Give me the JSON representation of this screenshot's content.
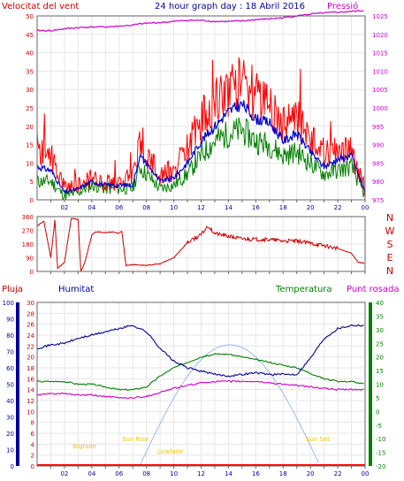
{
  "header": {
    "wind_title": "Velocitat del vent",
    "graph_title": "24 hour graph day : 18 Abril 2016",
    "pressure_title": "Pressió"
  },
  "bottom_header": {
    "rain_label": "Pluja",
    "humidity_label": "Humitat",
    "temperature_label": "Temperatura",
    "dewpoint_label": "Punt rosada"
  },
  "sun_labels": {
    "dawn": "Bigfade",
    "sunrise": "Sun Rise",
    "sunset": "Sun Set",
    "low": "Lowfade"
  },
  "wind_dir_labels": [
    "N",
    "W",
    "S",
    "E",
    "N"
  ],
  "colors": {
    "wind_gust": "#ff0000",
    "wind_avg": "#0000cc",
    "wind_speed": "#008000",
    "pressure": "#cc00cc",
    "direction": "#cc0000",
    "humidity": "#000099",
    "temperature": "#008000",
    "dewpoint": "#cc00cc",
    "rain": "#ff0000",
    "solar": "#99bbee",
    "grid": "#e6e6e6",
    "frame": "#666666"
  },
  "chart_data": [
    {
      "type": "line",
      "name": "wind",
      "x_ticks": [
        "02",
        "04",
        "06",
        "08",
        "10",
        "12",
        "14",
        "16",
        "18",
        "20",
        "22",
        "00"
      ],
      "y_ticks_left": [
        0,
        5,
        10,
        15,
        20,
        25,
        30,
        35,
        40,
        45,
        50
      ],
      "y_ticks_right": [
        975,
        980,
        985,
        990,
        995,
        1000,
        1005,
        1010,
        1015,
        1020,
        1025
      ],
      "ylim": [
        0,
        50
      ],
      "ylim_right": [
        975,
        1025
      ],
      "x_hours": [
        0,
        1,
        2,
        3,
        4,
        5,
        6,
        7,
        7.5,
        8,
        9,
        10,
        11,
        12,
        13,
        14,
        15,
        16,
        17,
        18,
        19,
        20,
        21,
        22,
        23,
        24
      ],
      "gust": [
        14,
        12,
        3,
        4,
        6,
        5,
        5,
        6,
        15,
        12,
        7,
        8,
        14,
        22,
        26,
        30,
        33,
        28,
        26,
        20,
        22,
        17,
        12,
        13,
        13,
        3
      ],
      "average": [
        9,
        8,
        2,
        3,
        5,
        4,
        4,
        4,
        12,
        10,
        5,
        6,
        10,
        16,
        20,
        24,
        26,
        22,
        21,
        16,
        18,
        13,
        9,
        11,
        12,
        2
      ],
      "speed": [
        5,
        5,
        1,
        2,
        4,
        3,
        3,
        3,
        9,
        7,
        3,
        4,
        7,
        12,
        16,
        18,
        19,
        16,
        15,
        12,
        13,
        10,
        7,
        8,
        9,
        1
      ],
      "pressure": [
        1021,
        1021,
        1021.5,
        1021.8,
        1022,
        1022,
        1022.2,
        1022.5,
        1022.8,
        1023,
        1023.2,
        1023.5,
        1023.8,
        1023.8,
        1023.5,
        1023.5,
        1023.6,
        1024,
        1024.2,
        1024.5,
        1025,
        1025.5,
        1025.8,
        1026,
        1026.2,
        1026.5
      ]
    },
    {
      "type": "line",
      "name": "wind_direction",
      "x_ticks": [
        "02",
        "04",
        "06",
        "08",
        "10",
        "12",
        "14",
        "16",
        "18",
        "20",
        "22",
        "00"
      ],
      "y_ticks": [
        0,
        45,
        90,
        135,
        180,
        225,
        270,
        315,
        360
      ],
      "y_tick_labels": [
        "0",
        "45",
        "90",
        "135",
        "180",
        "225",
        "270",
        "315",
        "360"
      ],
      "ylim": [
        0,
        360
      ],
      "x_hours": [
        0,
        0.5,
        1,
        1.3,
        1.5,
        2,
        2.5,
        3,
        3.2,
        3.5,
        4,
        4.3,
        5,
        5.5,
        6,
        6.2,
        6.5,
        7,
        8,
        9,
        10,
        11,
        12,
        12.5,
        13,
        14,
        15,
        16,
        17,
        18,
        19,
        20,
        21,
        22,
        23,
        23.5,
        24
      ],
      "direction": [
        300,
        330,
        90,
        340,
        20,
        60,
        350,
        340,
        0,
        60,
        240,
        260,
        255,
        260,
        250,
        265,
        40,
        45,
        40,
        50,
        90,
        190,
        240,
        300,
        250,
        230,
        215,
        210,
        210,
        200,
        200,
        185,
        170,
        150,
        120,
        60,
        55
      ]
    },
    {
      "type": "line",
      "name": "temperature_humidity",
      "x_ticks": [
        "02",
        "04",
        "06",
        "08",
        "10",
        "12",
        "14",
        "16",
        "18",
        "20",
        "22",
        "00"
      ],
      "humidity_ticks": [
        0,
        10,
        20,
        30,
        40,
        50,
        60,
        70,
        80,
        90,
        100
      ],
      "rain_ticks": [
        0,
        2,
        4,
        6,
        8,
        10,
        12,
        14,
        16,
        18,
        20,
        22,
        24,
        26,
        28,
        30
      ],
      "temp_ticks": [
        -20,
        -15,
        -10,
        -5,
        0,
        5,
        10,
        15,
        20,
        25,
        30,
        35,
        40
      ],
      "x_hours": [
        0,
        1,
        2,
        3,
        4,
        5,
        6,
        7,
        8,
        9,
        10,
        11,
        12,
        13,
        14,
        15,
        16,
        17,
        18,
        19,
        20,
        21,
        22,
        23,
        24
      ],
      "humidity": [
        72,
        74,
        75,
        78,
        80,
        82,
        84,
        86,
        82,
        72,
        64,
        60,
        58,
        56,
        55,
        56,
        57,
        56,
        56,
        56,
        66,
        78,
        84,
        86,
        86
      ],
      "temperature": [
        11,
        11,
        11,
        10,
        10,
        9,
        8,
        8,
        9,
        13,
        16,
        18,
        20,
        21,
        21,
        20,
        19,
        18,
        17,
        16,
        14,
        12,
        11,
        11,
        10
      ],
      "dewpoint": [
        6,
        6.5,
        6.5,
        6,
        6,
        5.5,
        5,
        5,
        5.5,
        7,
        8.5,
        9.5,
        10.5,
        11,
        11,
        11,
        11,
        10.5,
        10,
        9.5,
        9,
        8.5,
        8,
        8,
        8
      ],
      "solar_rise_hour": 7.5,
      "solar_set_hour": 20.7,
      "solar_peak_hour": 14.1
    }
  ]
}
